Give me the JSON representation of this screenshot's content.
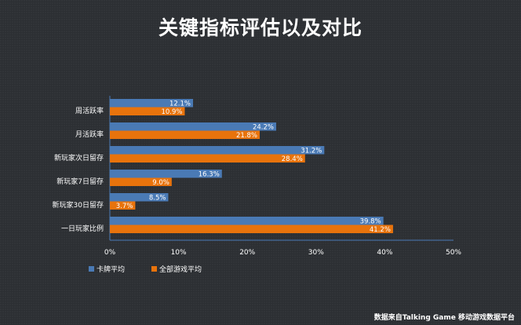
{
  "title": "关键指标评估以及对比",
  "source": "数据来自Talking Game 移动游戏数据平台",
  "chart_data": {
    "type": "bar",
    "orientation": "horizontal",
    "categories": [
      "周活跃率",
      "月活跃率",
      "新玩家次日留存",
      "新玩家7日留存",
      "新玩家30日留存",
      "一日玩家比例"
    ],
    "series": [
      {
        "name": "卡牌平均",
        "color": "#4a7ab5",
        "values": [
          12.1,
          24.2,
          31.2,
          16.3,
          8.5,
          39.8
        ],
        "labels": [
          "12.1%",
          "24.2%",
          "31.2%",
          "16.3%",
          "8.5%",
          "39.8%"
        ]
      },
      {
        "name": "全部游戏平均",
        "color": "#e8730c",
        "values": [
          10.9,
          21.8,
          28.4,
          9.0,
          3.7,
          41.2
        ],
        "labels": [
          "10.9%",
          "21.8%",
          "28.4%",
          "9.0%",
          "3.7%",
          "41.2%"
        ]
      }
    ],
    "xlim": [
      0,
      50
    ],
    "xticks": [
      "0%",
      "10%",
      "20%",
      "30%",
      "40%",
      "50%"
    ],
    "legend": "bottom-left",
    "grid": false
  }
}
